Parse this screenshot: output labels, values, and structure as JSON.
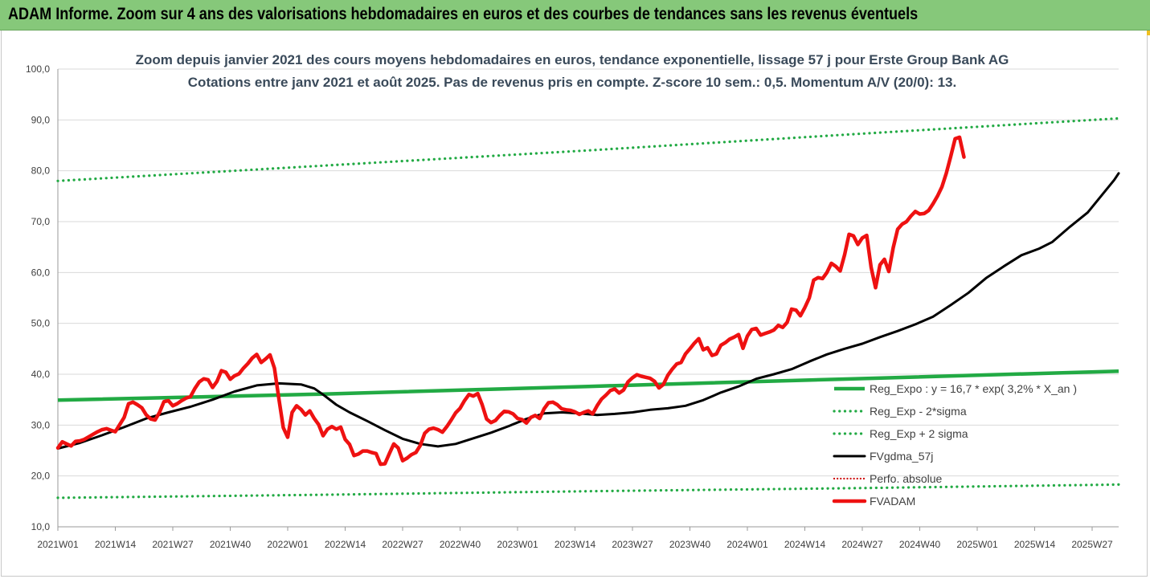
{
  "banner": {
    "title": "ADAM Informe. Zoom sur 4 ans des valorisations hebdomadaires en euros et des courbes de tendances sans les revenus éventuels"
  },
  "colors": {
    "banner_bg": "#86c87a",
    "green": "#22aa44",
    "black": "#000000",
    "red": "#ee1111",
    "dotted_red": "#cc0000"
  },
  "chart_data": {
    "type": "line",
    "title": "Zoom depuis janvier 2021 des cours moyens hebdomadaires en euros, tendance exponentielle, lissage 57 j pour Erste Group Bank AG",
    "subtitle": "Cotations entre janv 2021 et août 2025. Pas de revenus pris en compte. Z-score 10 sem.: 0,5. Momentum A/V (20/0): 13.",
    "ylim": [
      10,
      100
    ],
    "yticks": [
      "10,0",
      "20,0",
      "30,0",
      "40,0",
      "50,0",
      "60,0",
      "70,0",
      "80,0",
      "90,0",
      "100,0"
    ],
    "xlim": [
      0,
      240
    ],
    "x_unit": "weeks since 2021W01",
    "xticks": [
      {
        "label": "2021W01",
        "week": 0
      },
      {
        "label": "2021W14",
        "week": 13
      },
      {
        "label": "2021W27",
        "week": 26
      },
      {
        "label": "2021W40",
        "week": 39
      },
      {
        "label": "2022W01",
        "week": 52
      },
      {
        "label": "2022W14",
        "week": 65
      },
      {
        "label": "2022W27",
        "week": 78
      },
      {
        "label": "2022W40",
        "week": 91
      },
      {
        "label": "2023W01",
        "week": 104
      },
      {
        "label": "2023W14",
        "week": 117
      },
      {
        "label": "2023W27",
        "week": 130
      },
      {
        "label": "2023W40",
        "week": 143
      },
      {
        "label": "2024W01",
        "week": 156
      },
      {
        "label": "2024W14",
        "week": 169
      },
      {
        "label": "2024W27",
        "week": 182
      },
      {
        "label": "2024W40",
        "week": 195
      },
      {
        "label": "2025W01",
        "week": 208
      },
      {
        "label": "2025W14",
        "week": 221
      },
      {
        "label": "2025W27",
        "week": 234
      }
    ],
    "grid": "horizontal",
    "legend_position": "right, lower half",
    "series": [
      {
        "name": "Reg_Expo : y = 16,7 * exp( 3,2% *  X_an )",
        "style": "solid",
        "color": "#22aa44",
        "points": [
          [
            0,
            34.9
          ],
          [
            60,
            36.1
          ],
          [
            120,
            37.6
          ],
          [
            180,
            39.1
          ],
          [
            240,
            40.6
          ]
        ]
      },
      {
        "name": "Reg_Exp - 2*sigma",
        "style": "dotted",
        "color": "#22aa44",
        "points": [
          [
            0,
            15.7
          ],
          [
            60,
            16.3
          ],
          [
            120,
            17.0
          ],
          [
            180,
            17.6
          ],
          [
            240,
            18.3
          ]
        ]
      },
      {
        "name": "Reg_Exp + 2 sigma",
        "style": "dotted",
        "color": "#22aa44",
        "points": [
          [
            0,
            78.0
          ],
          [
            60,
            81.0
          ],
          [
            120,
            84.0
          ],
          [
            180,
            87.2
          ],
          [
            240,
            90.3
          ]
        ]
      },
      {
        "name": "FVgdma_57j",
        "style": "solid",
        "color": "#000000",
        "points": [
          [
            0,
            25.4
          ],
          [
            5,
            26.5
          ],
          [
            10,
            28.0
          ],
          [
            15,
            29.6
          ],
          [
            20,
            31.3
          ],
          [
            25,
            32.5
          ],
          [
            30,
            33.6
          ],
          [
            35,
            35.0
          ],
          [
            40,
            36.6
          ],
          [
            45,
            37.8
          ],
          [
            50,
            38.2
          ],
          [
            55,
            38.0
          ],
          [
            58,
            37.2
          ],
          [
            60,
            36.0
          ],
          [
            63,
            34.0
          ],
          [
            66,
            32.5
          ],
          [
            70,
            30.8
          ],
          [
            74,
            29.0
          ],
          [
            78,
            27.3
          ],
          [
            82,
            26.3
          ],
          [
            86,
            25.8
          ],
          [
            90,
            26.3
          ],
          [
            94,
            27.4
          ],
          [
            98,
            28.5
          ],
          [
            102,
            29.8
          ],
          [
            106,
            31.2
          ],
          [
            110,
            32.3
          ],
          [
            114,
            32.5
          ],
          [
            118,
            32.3
          ],
          [
            122,
            32.0
          ],
          [
            126,
            32.2
          ],
          [
            130,
            32.5
          ],
          [
            134,
            33.0
          ],
          [
            138,
            33.3
          ],
          [
            142,
            33.8
          ],
          [
            146,
            34.9
          ],
          [
            150,
            36.4
          ],
          [
            154,
            37.6
          ],
          [
            158,
            39.1
          ],
          [
            162,
            40.0
          ],
          [
            166,
            41.0
          ],
          [
            170,
            42.5
          ],
          [
            174,
            43.9
          ],
          [
            178,
            45.0
          ],
          [
            182,
            46.0
          ],
          [
            186,
            47.3
          ],
          [
            190,
            48.5
          ],
          [
            194,
            49.8
          ],
          [
            198,
            51.3
          ],
          [
            202,
            53.6
          ],
          [
            206,
            56.0
          ],
          [
            210,
            58.9
          ],
          [
            214,
            61.2
          ],
          [
            218,
            63.4
          ],
          [
            222,
            64.7
          ],
          [
            225,
            66.0
          ],
          [
            229,
            69.0
          ],
          [
            233,
            71.8
          ],
          [
            236,
            75.0
          ],
          [
            239,
            78.2
          ],
          [
            240,
            79.5
          ]
        ]
      },
      {
        "name": "Perfo. absolue",
        "style": "dotted",
        "color": "#cc0000",
        "points": []
      },
      {
        "name": "FVADAM",
        "style": "solid",
        "color": "#ee1111",
        "points": [
          [
            0,
            25.5
          ],
          [
            1,
            26.7
          ],
          [
            2,
            26.3
          ],
          [
            3,
            25.9
          ],
          [
            4,
            26.8
          ],
          [
            5,
            26.9
          ],
          [
            6,
            27.2
          ],
          [
            7,
            27.7
          ],
          [
            8,
            28.2
          ],
          [
            9,
            28.7
          ],
          [
            10,
            29.1
          ],
          [
            11,
            29.3
          ],
          [
            12,
            29.0
          ],
          [
            13,
            28.7
          ],
          [
            14,
            30.1
          ],
          [
            15,
            31.5
          ],
          [
            16,
            34.2
          ],
          [
            17,
            34.5
          ],
          [
            18,
            34.0
          ],
          [
            19,
            33.4
          ],
          [
            20,
            32.0
          ],
          [
            21,
            31.2
          ],
          [
            22,
            31.0
          ],
          [
            23,
            32.5
          ],
          [
            24,
            34.6
          ],
          [
            25,
            34.8
          ],
          [
            26,
            33.8
          ],
          [
            27,
            34.2
          ],
          [
            28,
            34.8
          ],
          [
            29,
            35.3
          ],
          [
            30,
            35.6
          ],
          [
            31,
            37.2
          ],
          [
            32,
            38.5
          ],
          [
            33,
            39.1
          ],
          [
            34,
            38.9
          ],
          [
            35,
            37.4
          ],
          [
            36,
            38.6
          ],
          [
            37,
            40.7
          ],
          [
            38,
            40.4
          ],
          [
            39,
            39.0
          ],
          [
            40,
            39.7
          ],
          [
            41,
            40.1
          ],
          [
            42,
            41.2
          ],
          [
            43,
            42.1
          ],
          [
            44,
            43.2
          ],
          [
            45,
            43.9
          ],
          [
            46,
            42.3
          ],
          [
            47,
            43.0
          ],
          [
            48,
            43.8
          ],
          [
            49,
            41.2
          ],
          [
            50,
            35.2
          ],
          [
            51,
            29.5
          ],
          [
            52,
            27.6
          ],
          [
            53,
            32.5
          ],
          [
            54,
            33.8
          ],
          [
            55,
            33.1
          ],
          [
            56,
            32.0
          ],
          [
            57,
            32.8
          ],
          [
            58,
            31.3
          ],
          [
            59,
            30.1
          ],
          [
            60,
            27.9
          ],
          [
            61,
            29.2
          ],
          [
            62,
            29.7
          ],
          [
            63,
            29.2
          ],
          [
            64,
            29.6
          ],
          [
            65,
            27.2
          ],
          [
            66,
            26.2
          ],
          [
            67,
            24.0
          ],
          [
            68,
            24.3
          ],
          [
            69,
            24.9
          ],
          [
            70,
            24.9
          ],
          [
            71,
            24.6
          ],
          [
            72,
            24.4
          ],
          [
            73,
            22.3
          ],
          [
            74,
            22.4
          ],
          [
            75,
            24.4
          ],
          [
            76,
            26.3
          ],
          [
            77,
            25.5
          ],
          [
            78,
            23.0
          ],
          [
            79,
            23.5
          ],
          [
            80,
            24.2
          ],
          [
            81,
            24.6
          ],
          [
            82,
            26.0
          ],
          [
            83,
            28.4
          ],
          [
            84,
            29.2
          ],
          [
            85,
            29.4
          ],
          [
            86,
            29.1
          ],
          [
            87,
            28.6
          ],
          [
            88,
            29.7
          ],
          [
            89,
            31.0
          ],
          [
            90,
            32.4
          ],
          [
            91,
            33.3
          ],
          [
            92,
            34.8
          ],
          [
            93,
            36.0
          ],
          [
            94,
            35.7
          ],
          [
            95,
            36.2
          ],
          [
            96,
            34.0
          ],
          [
            97,
            31.2
          ],
          [
            98,
            30.5
          ],
          [
            99,
            30.9
          ],
          [
            100,
            31.9
          ],
          [
            101,
            32.7
          ],
          [
            102,
            32.6
          ],
          [
            103,
            32.2
          ],
          [
            104,
            31.3
          ],
          [
            105,
            31.1
          ],
          [
            106,
            30.4
          ],
          [
            107,
            31.5
          ],
          [
            108,
            31.9
          ],
          [
            109,
            31.3
          ],
          [
            110,
            33.2
          ],
          [
            111,
            34.4
          ],
          [
            112,
            34.5
          ],
          [
            113,
            34.0
          ],
          [
            114,
            33.2
          ],
          [
            115,
            33.0
          ],
          [
            116,
            32.9
          ],
          [
            117,
            32.6
          ],
          [
            118,
            32.1
          ],
          [
            119,
            32.5
          ],
          [
            120,
            32.8
          ],
          [
            121,
            32.2
          ],
          [
            122,
            33.8
          ],
          [
            123,
            35.1
          ],
          [
            124,
            35.9
          ],
          [
            125,
            36.8
          ],
          [
            126,
            37.1
          ],
          [
            127,
            36.3
          ],
          [
            128,
            36.9
          ],
          [
            129,
            38.5
          ],
          [
            130,
            39.3
          ],
          [
            131,
            39.9
          ],
          [
            132,
            39.6
          ],
          [
            133,
            39.4
          ],
          [
            134,
            39.2
          ],
          [
            135,
            38.6
          ],
          [
            136,
            37.3
          ],
          [
            137,
            38.0
          ],
          [
            138,
            39.8
          ],
          [
            139,
            41.0
          ],
          [
            140,
            42.0
          ],
          [
            141,
            42.3
          ],
          [
            142,
            44.0
          ],
          [
            143,
            45.0
          ],
          [
            144,
            46.1
          ],
          [
            145,
            47.0
          ],
          [
            146,
            44.8
          ],
          [
            147,
            45.2
          ],
          [
            148,
            43.7
          ],
          [
            149,
            44.0
          ],
          [
            150,
            45.7
          ],
          [
            151,
            46.2
          ],
          [
            152,
            46.9
          ],
          [
            153,
            47.3
          ],
          [
            154,
            47.8
          ],
          [
            155,
            45.1
          ],
          [
            156,
            47.5
          ],
          [
            157,
            48.8
          ],
          [
            158,
            49.0
          ],
          [
            159,
            47.7
          ],
          [
            160,
            48.0
          ],
          [
            161,
            48.3
          ],
          [
            162,
            48.7
          ],
          [
            163,
            49.6
          ],
          [
            164,
            49.2
          ],
          [
            165,
            50.2
          ],
          [
            166,
            52.8
          ],
          [
            167,
            52.6
          ],
          [
            168,
            51.5
          ],
          [
            169,
            53.1
          ],
          [
            170,
            55.0
          ],
          [
            171,
            58.5
          ],
          [
            172,
            59.0
          ],
          [
            173,
            58.8
          ],
          [
            174,
            60.0
          ],
          [
            175,
            61.8
          ],
          [
            176,
            61.2
          ],
          [
            177,
            60.3
          ],
          [
            178,
            63.5
          ],
          [
            179,
            67.5
          ],
          [
            180,
            67.2
          ],
          [
            181,
            65.5
          ],
          [
            182,
            66.8
          ],
          [
            183,
            67.3
          ],
          [
            184,
            61.0
          ],
          [
            185,
            57.0
          ],
          [
            186,
            61.5
          ],
          [
            187,
            62.6
          ],
          [
            188,
            60.2
          ],
          [
            189,
            64.9
          ],
          [
            190,
            68.5
          ],
          [
            191,
            69.5
          ],
          [
            192,
            70.0
          ],
          [
            193,
            71.1
          ],
          [
            194,
            72.0
          ],
          [
            195,
            71.5
          ],
          [
            196,
            71.6
          ],
          [
            197,
            72.2
          ],
          [
            198,
            73.5
          ],
          [
            199,
            75.0
          ],
          [
            200,
            76.8
          ],
          [
            201,
            79.5
          ],
          [
            202,
            82.8
          ],
          [
            203,
            86.3
          ],
          [
            204,
            86.6
          ],
          [
            205,
            82.7
          ]
        ]
      }
    ]
  }
}
